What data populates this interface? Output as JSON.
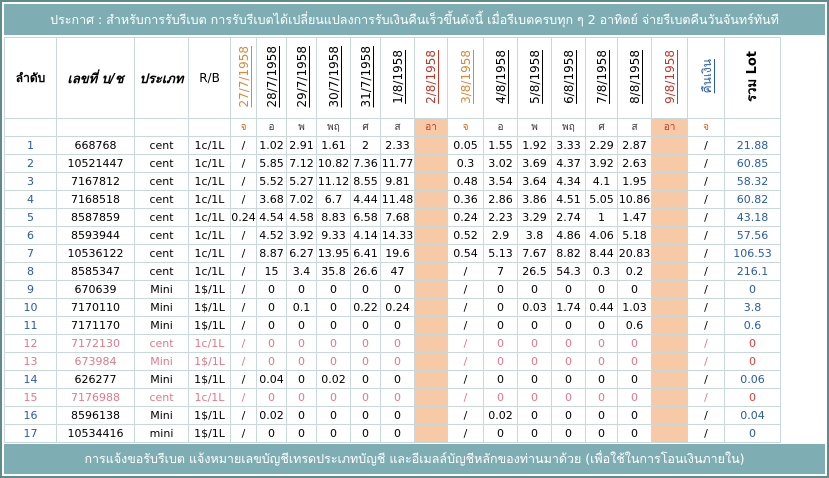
{
  "banner": "ประกาศ : สำหรับการรับรีเบต  การรับรีเบตได้เปลี่ยนแปลงการรับเงินคืนเร็วขึ้นดังนี้   เมื่อรีเบตครบทุก ๆ 2 อาทิตย์ จ่ายรีเบตคืนวันจันทร์ทันที",
  "footer": "การแจ้งขอรับรีเบต  แจ้งหมายเลขบัญชีเทรดประเภทบัญชี และอีเมลล์บัญชีหลักของท่านมาด้วย  (เพื่อใช้ในการโอนเงินภายใน)",
  "headers": {
    "idx": "ลำดับ",
    "account": "เลขที่ บ/ช",
    "type": "ประเภท",
    "rb": "R/B",
    "dates": [
      {
        "label": "27/7/1958",
        "color": "orange"
      },
      {
        "label": "28/7/1958",
        "color": "black"
      },
      {
        "label": "29/7/1958",
        "color": "black"
      },
      {
        "label": "30/7/1958",
        "color": "black"
      },
      {
        "label": "31/7/1958",
        "color": "black"
      },
      {
        "label": "1/8/1958",
        "color": "black"
      },
      {
        "label": "2/8/1958",
        "color": "red"
      },
      {
        "label": "3/8/1958",
        "color": "orange"
      },
      {
        "label": "4/8/1958",
        "color": "black"
      },
      {
        "label": "5/8/1958",
        "color": "black"
      },
      {
        "label": "6/8/1958",
        "color": "black"
      },
      {
        "label": "7/8/1958",
        "color": "black"
      },
      {
        "label": "8/8/1958",
        "color": "black"
      },
      {
        "label": "9/8/1958",
        "color": "red"
      },
      {
        "label": "คืนเงิน",
        "color": "blue"
      }
    ],
    "total": "รวม Lot"
  },
  "days": [
    "จ",
    "อ",
    "พ",
    "พฤ",
    "ศ",
    "ส",
    "อา",
    "จ",
    "อ",
    "พ",
    "พฤ",
    "ศ",
    "ส",
    "อา",
    "จ"
  ],
  "rows": [
    {
      "idx": "1",
      "account": "668768",
      "type": "cent",
      "rb": "1c/1L",
      "c0": "/",
      "v": [
        "1.02",
        "2.91",
        "1.61",
        "2",
        "2.33"
      ],
      "w": [
        "0.05",
        "1.55",
        "1.92",
        "3.33",
        "2.29",
        "2.87"
      ],
      "refund": "/",
      "total": "21.88",
      "pink": false
    },
    {
      "idx": "2",
      "account": "10521447",
      "type": "cent",
      "rb": "1c/1L",
      "c0": "/",
      "v": [
        "5.85",
        "7.12",
        "10.82",
        "7.36",
        "11.77"
      ],
      "w": [
        "0.3",
        "3.02",
        "3.69",
        "4.37",
        "3.92",
        "2.63"
      ],
      "refund": "/",
      "total": "60.85",
      "pink": false
    },
    {
      "idx": "3",
      "account": "7167812",
      "type": "cent",
      "rb": "1c/1L",
      "c0": "/",
      "v": [
        "5.52",
        "5.27",
        "11.12",
        "8.55",
        "9.81"
      ],
      "w": [
        "0.48",
        "3.54",
        "3.64",
        "4.34",
        "4.1",
        "1.95"
      ],
      "refund": "/",
      "total": "58.32",
      "pink": false
    },
    {
      "idx": "4",
      "account": "7168518",
      "type": "cent",
      "rb": "1c/1L",
      "c0": "/",
      "v": [
        "3.68",
        "7.02",
        "6.7",
        "4.44",
        "11.48"
      ],
      "w": [
        "0.36",
        "2.86",
        "3.86",
        "4.51",
        "5.05",
        "10.86"
      ],
      "refund": "/",
      "total": "60.82",
      "pink": false
    },
    {
      "idx": "5",
      "account": "8587859",
      "type": "cent",
      "rb": "1c/1L",
      "c0": "0.24",
      "v": [
        "4.54",
        "4.58",
        "8.83",
        "6.58",
        "7.68"
      ],
      "w": [
        "0.24",
        "2.23",
        "3.29",
        "2.74",
        "1",
        "1.47"
      ],
      "refund": "/",
      "total": "43.18",
      "pink": false
    },
    {
      "idx": "6",
      "account": "8593944",
      "type": "cent",
      "rb": "1c/1L",
      "c0": "/",
      "v": [
        "4.52",
        "3.92",
        "9.33",
        "4.14",
        "14.33"
      ],
      "w": [
        "0.52",
        "2.9",
        "3.8",
        "4.86",
        "4.06",
        "5.18"
      ],
      "refund": "/",
      "total": "57.56",
      "pink": false
    },
    {
      "idx": "7",
      "account": "10536122",
      "type": "cent",
      "rb": "1c/1L",
      "c0": "/",
      "v": [
        "8.87",
        "6.27",
        "13.95",
        "6.41",
        "19.6"
      ],
      "w": [
        "0.54",
        "5.13",
        "7.67",
        "8.82",
        "8.44",
        "20.83"
      ],
      "refund": "/",
      "total": "106.53",
      "pink": false
    },
    {
      "idx": "8",
      "account": "8585347",
      "type": "cent",
      "rb": "1c/1L",
      "c0": "/",
      "v": [
        "15",
        "3.4",
        "35.8",
        "26.6",
        "47"
      ],
      "w": [
        "/",
        "7",
        "26.5",
        "54.3",
        "0.3",
        "0.2"
      ],
      "refund": "/",
      "total": "216.1",
      "pink": false
    },
    {
      "idx": "9",
      "account": "670639",
      "type": "Mini",
      "rb": "1$/1L",
      "c0": "/",
      "v": [
        "0",
        "0",
        "0",
        "0",
        "0"
      ],
      "w": [
        "/",
        "0",
        "0",
        "0",
        "0",
        "0"
      ],
      "refund": "/",
      "total": "0",
      "pink": false
    },
    {
      "idx": "10",
      "account": "7170110",
      "type": "Mini",
      "rb": "1$/1L",
      "c0": "/",
      "v": [
        "0",
        "0.1",
        "0",
        "0.22",
        "0.24"
      ],
      "w": [
        "/",
        "0",
        "0.03",
        "1.74",
        "0.44",
        "1.03"
      ],
      "refund": "/",
      "total": "3.8",
      "pink": false
    },
    {
      "idx": "11",
      "account": "7171170",
      "type": "Mini",
      "rb": "1$/1L",
      "c0": "/",
      "v": [
        "0",
        "0",
        "0",
        "0",
        "0"
      ],
      "w": [
        "/",
        "0",
        "0",
        "0",
        "0",
        "0.6"
      ],
      "refund": "/",
      "total": "0.6",
      "pink": false
    },
    {
      "idx": "12",
      "account": "7172130",
      "type": "cent",
      "rb": "1c/1L",
      "c0": "/",
      "v": [
        "0",
        "0",
        "0",
        "0",
        "0"
      ],
      "w": [
        "/",
        "0",
        "0",
        "0",
        "0",
        "0"
      ],
      "refund": "/",
      "total": "0",
      "pink": true
    },
    {
      "idx": "13",
      "account": "673984",
      "type": "Mini",
      "rb": "1$/1L",
      "c0": "/",
      "v": [
        "0",
        "0",
        "0",
        "0",
        "0"
      ],
      "w": [
        "/",
        "0",
        "0",
        "0",
        "0",
        "0"
      ],
      "refund": "/",
      "total": "0",
      "pink": true
    },
    {
      "idx": "14",
      "account": "626277",
      "type": "Mini",
      "rb": "1$/1L",
      "c0": "/",
      "v": [
        "0.04",
        "0",
        "0.02",
        "0",
        "0"
      ],
      "w": [
        "/",
        "0",
        "0",
        "0",
        "0",
        "0"
      ],
      "refund": "/",
      "total": "0.06",
      "pink": false
    },
    {
      "idx": "15",
      "account": "7176988",
      "type": "cent",
      "rb": "1c/1L",
      "c0": "/",
      "v": [
        "0",
        "0",
        "0",
        "0",
        "0"
      ],
      "w": [
        "/",
        "0",
        "0",
        "0",
        "0",
        "0"
      ],
      "refund": "/",
      "total": "0",
      "pink": true
    },
    {
      "idx": "16",
      "account": "8596138",
      "type": "Mini",
      "rb": "1$/1L",
      "c0": "/",
      "v": [
        "0.02",
        "0",
        "0",
        "0",
        "0"
      ],
      "w": [
        "/",
        "0.02",
        "0",
        "0",
        "0",
        "0"
      ],
      "refund": "/",
      "total": "0.04",
      "pink": false
    },
    {
      "idx": "17",
      "account": "10534416",
      "type": "mini",
      "rb": "1$/1L",
      "c0": "/",
      "v": [
        "0",
        "0",
        "0",
        "0",
        "0"
      ],
      "w": [
        "/",
        "0",
        "0",
        "0",
        "0",
        "0"
      ],
      "refund": "/",
      "total": "0",
      "pink": false
    }
  ]
}
